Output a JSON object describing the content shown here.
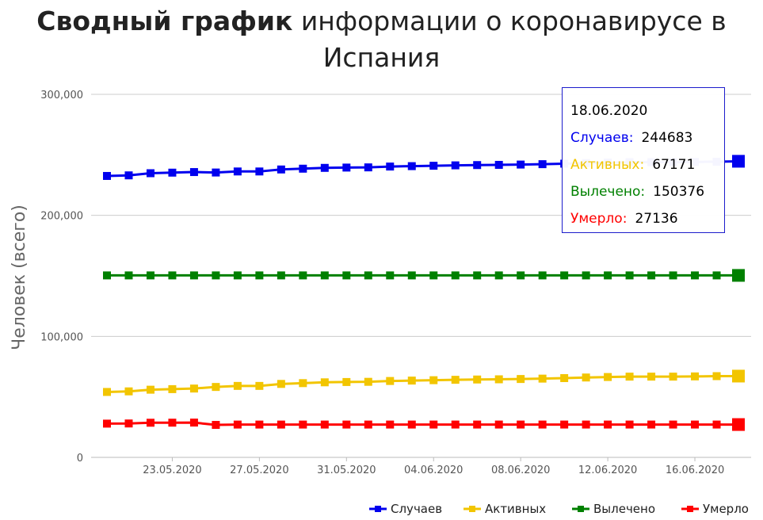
{
  "title": {
    "bold": "Сводный график",
    "rest": "информации о коронавирусе в",
    "line2": "Испания"
  },
  "tooltip": {
    "date": "18.06.2020",
    "rows": [
      {
        "label": "Случаев:",
        "value": "244683",
        "color": "#0000ee"
      },
      {
        "label": "Активных:",
        "value": "67171",
        "color": "#f2c500"
      },
      {
        "label": "Вылечено:",
        "value": "150376",
        "color": "#008000"
      },
      {
        "label": "Умерло:",
        "value": "27136",
        "color": "#ff0000"
      }
    ]
  },
  "chart_data": {
    "type": "line",
    "ylabel": "Человек (всего)",
    "xlabel": "",
    "ylim": [
      0,
      300000
    ],
    "yticks": [
      0,
      100000,
      200000,
      300000
    ],
    "ytick_labels": [
      "0",
      "100,000",
      "200,000",
      "300,000"
    ],
    "x": [
      "20.05.2020",
      "21.05.2020",
      "22.05.2020",
      "23.05.2020",
      "24.05.2020",
      "25.05.2020",
      "26.05.2020",
      "27.05.2020",
      "28.05.2020",
      "29.05.2020",
      "30.05.2020",
      "31.05.2020",
      "01.06.2020",
      "02.06.2020",
      "03.06.2020",
      "04.06.2020",
      "05.06.2020",
      "06.06.2020",
      "07.06.2020",
      "08.06.2020",
      "09.06.2020",
      "10.06.2020",
      "11.06.2020",
      "12.06.2020",
      "13.06.2020",
      "14.06.2020",
      "15.06.2020",
      "16.06.2020",
      "17.06.2020",
      "18.06.2020"
    ],
    "xtick_labels": [
      "23.05.2020",
      "27.05.2020",
      "31.05.2020",
      "04.06.2020",
      "08.06.2020",
      "12.06.2020",
      "16.06.2020"
    ],
    "grid": true,
    "legend_position": "bottom-right",
    "series": [
      {
        "name": "Случаев",
        "color": "#0000ee",
        "values": [
          232555,
          233037,
          234824,
          235290,
          235772,
          235400,
          236259,
          236259,
          237906,
          238564,
          239228,
          239479,
          239638,
          240326,
          240660,
          240978,
          241310,
          241550,
          241717,
          241966,
          242280,
          242707,
          243209,
          243605,
          243928,
          243928,
          243928,
          244109,
          244328,
          244683
        ]
      },
      {
        "name": "Активных",
        "color": "#f2c500",
        "values": [
          54064,
          54546,
          55927,
          56393,
          56875,
          58200,
          59058,
          59058,
          60705,
          61363,
          62027,
          62278,
          62437,
          63125,
          63459,
          63777,
          64109,
          64349,
          64516,
          64765,
          65079,
          65506,
          66008,
          66404,
          66727,
          66727,
          66727,
          66908,
          67127,
          67171
        ]
      },
      {
        "name": "Вылечено",
        "color": "#008000",
        "values": [
          150376,
          150376,
          150376,
          150376,
          150376,
          150376,
          150376,
          150376,
          150376,
          150376,
          150376,
          150376,
          150376,
          150376,
          150376,
          150376,
          150376,
          150376,
          150376,
          150376,
          150376,
          150376,
          150376,
          150376,
          150376,
          150376,
          150376,
          150376,
          150376,
          150376
        ]
      },
      {
        "name": "Умерло",
        "color": "#ff0000",
        "values": [
          27888,
          28022,
          28628,
          28678,
          28752,
          26834,
          27117,
          27117,
          27119,
          27121,
          27125,
          27127,
          27127,
          27127,
          27128,
          27133,
          27133,
          27134,
          27135,
          27136,
          27136,
          27136,
          27136,
          27136,
          27136,
          27136,
          27136,
          27136,
          27136,
          27136
        ]
      }
    ]
  }
}
